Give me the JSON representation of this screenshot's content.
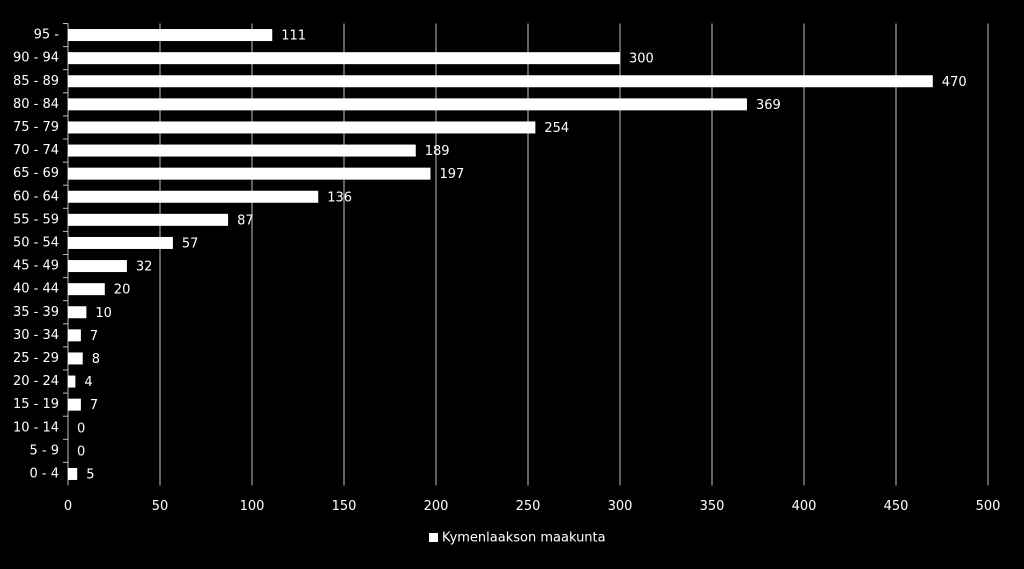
{
  "chart_data": {
    "type": "bar",
    "orientation": "horizontal",
    "categories": [
      "95 -",
      "90 - 94",
      "85 - 89",
      "80 - 84",
      "75 - 79",
      "70 - 74",
      "65 - 69",
      "60 - 64",
      "55 - 59",
      "50 - 54",
      "45 - 49",
      "40 - 44",
      "35 - 39",
      "30 - 34",
      "25 - 29",
      "20 - 24",
      "15 - 19",
      "10 - 14",
      "5 - 9",
      "0 - 4"
    ],
    "series": [
      {
        "name": "Kymenlaakson maakunta",
        "color": "#ffffff",
        "values": [
          111,
          300,
          470,
          369,
          254,
          189,
          197,
          136,
          87,
          57,
          32,
          20,
          10,
          7,
          8,
          4,
          7,
          0,
          0,
          5
        ]
      }
    ],
    "xlim": [
      0,
      500
    ],
    "xticks": [
      0,
      50,
      100,
      150,
      200,
      250,
      300,
      350,
      400,
      450,
      500
    ],
    "grid": true,
    "legend": "bottom"
  }
}
